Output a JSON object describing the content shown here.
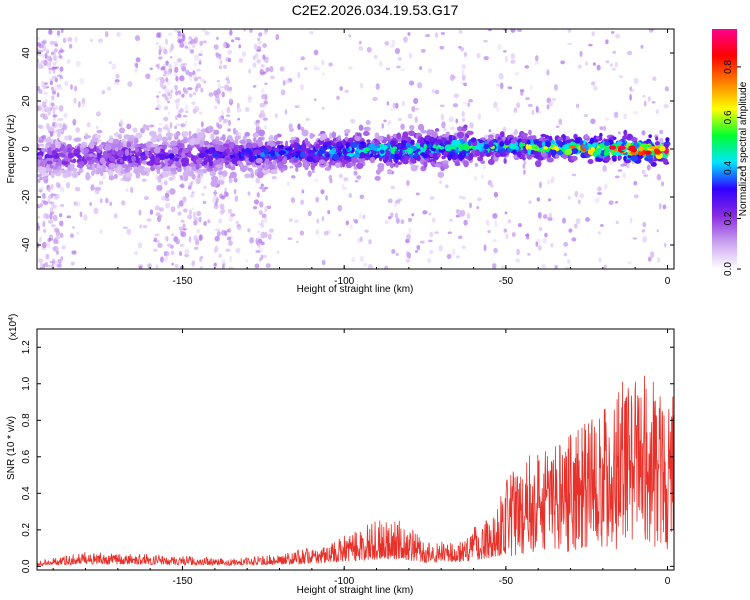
{
  "title": "C2E2.2026.034.19.53.G17",
  "colors": {
    "line": "#e8312a",
    "axis": "#000000",
    "colormap": [
      "#ffffff",
      "#c9a2f0",
      "#8a2be2",
      "#2f00ff",
      "#00e5ff",
      "#00ff30",
      "#ffff00",
      "#ff7f00",
      "#ff0000",
      "#ff0090"
    ]
  },
  "chart_data": [
    {
      "type": "heatmap",
      "xlabel": "Height of straight line (km)",
      "ylabel": "Frequency (Hz)",
      "xlim": [
        -195,
        2
      ],
      "ylim": [
        -50,
        50
      ],
      "xticks": [
        -150,
        -100,
        -50,
        0
      ],
      "yticks": [
        -40,
        -20,
        0,
        20,
        40
      ],
      "colorbar": {
        "label": "Normalized spectral amplitude",
        "range": [
          0,
          0.95
        ],
        "ticks": [
          "0.0",
          "0.2",
          "0.4",
          "0.6",
          "0.8"
        ]
      },
      "ridge": {
        "description_points_x": [
          -190,
          -150,
          -100,
          -50,
          -20,
          0
        ],
        "center_freq": [
          -3,
          -3,
          -1,
          1,
          0,
          -1
        ],
        "peak_amplitude": [
          0.25,
          0.28,
          0.45,
          0.55,
          0.8,
          0.9
        ]
      }
    },
    {
      "type": "line",
      "xlabel": "Height of straight line (km)",
      "ylabel": "SNR (10 * v/v)",
      "y_multiplier": "(x10^4)",
      "xlim": [
        -195,
        2
      ],
      "ylim": [
        -0.02,
        1.3
      ],
      "xticks": [
        -150,
        -100,
        -50,
        0
      ],
      "yticks": [
        "0.0",
        "0.2",
        "0.4",
        "0.6",
        "0.8",
        "1.0",
        "1.2"
      ],
      "envelope": {
        "x": [
          -195,
          -180,
          -170,
          -150,
          -135,
          -120,
          -105,
          -95,
          -85,
          -80,
          -75,
          -65,
          -55,
          -50,
          -45,
          -40,
          -35,
          -30,
          -25,
          -20,
          -15,
          -10,
          -5,
          0,
          2
        ],
        "y": [
          0.03,
          0.08,
          0.07,
          0.06,
          0.04,
          0.07,
          0.12,
          0.22,
          0.28,
          0.22,
          0.14,
          0.14,
          0.3,
          0.45,
          0.55,
          0.62,
          0.65,
          0.7,
          0.78,
          0.85,
          0.95,
          1.05,
          0.98,
          0.92,
          0.95
        ]
      }
    }
  ]
}
